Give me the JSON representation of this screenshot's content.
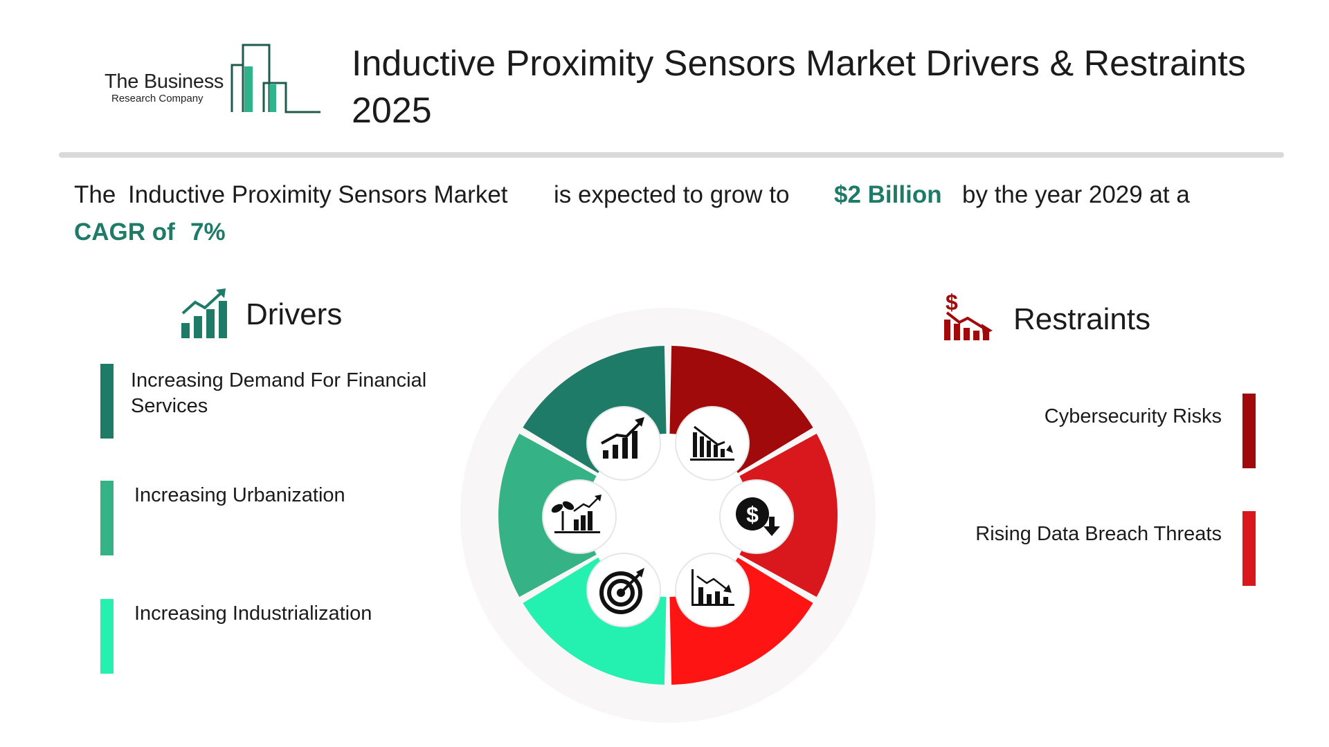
{
  "logo": {
    "line1": "The Business",
    "line2": "Research Company"
  },
  "title": "Inductive Proximity Sensors Market Drivers & Restraints 2025",
  "summary": {
    "part1": "The",
    "market": "Inductive Proximity Sensors Market",
    "part2": "is expected to grow to",
    "value": "$2 Billion",
    "part3": "by the year 2029 at a",
    "cagr_label": "CAGR of",
    "cagr_value": "7%"
  },
  "drivers": {
    "heading": "Drivers",
    "icon": "growth-chart-icon",
    "items": [
      {
        "label": "Increasing Demand For Financial Services",
        "color": "#1e7b67"
      },
      {
        "label": "Increasing Urbanization",
        "color": "#36b386"
      },
      {
        "label": "Increasing Industrialization",
        "color": "#24f0b0"
      }
    ]
  },
  "restraints": {
    "heading": "Restraints",
    "icon": "dollar-decline-icon",
    "items": [
      {
        "label": "Cybersecurity Risks",
        "color": "#a10a0a"
      },
      {
        "label": "Rising Data Breach Threats",
        "color": "#d8181c"
      }
    ]
  },
  "wheel": {
    "segments": [
      {
        "name": "top-left",
        "color": "#1e7b67",
        "icon": "rising-bar-chart-icon"
      },
      {
        "name": "left",
        "color": "#36b386",
        "icon": "plant-growth-chart-icon"
      },
      {
        "name": "bottom-left",
        "color": "#24f0b0",
        "icon": "target-arrow-icon"
      },
      {
        "name": "top-right",
        "color": "#a10a0a",
        "icon": "declining-bar-chart-icon"
      },
      {
        "name": "right",
        "color": "#d8181c",
        "icon": "dollar-down-icon"
      },
      {
        "name": "bottom-right",
        "color": "#ff1414",
        "icon": "falling-trend-chart-icon"
      }
    ]
  }
}
